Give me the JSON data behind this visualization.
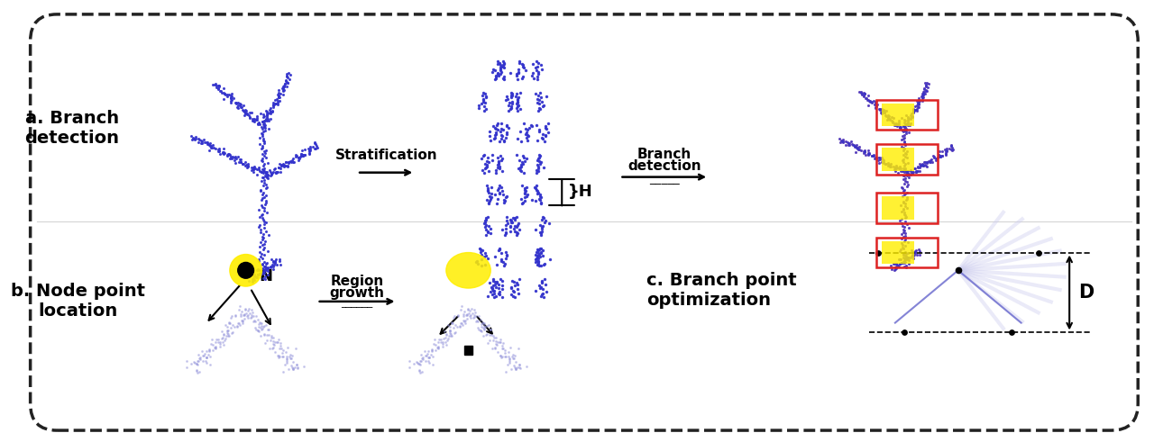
{
  "fig_width": 12.8,
  "fig_height": 4.91,
  "bg_color": "#ffffff",
  "border_color": "#222222",
  "label_a": "a. Branch\ndetection",
  "label_b": "b. Node point\nlocation",
  "label_c": "c. Branch point\noptimization",
  "arrow1_label": "Stratification",
  "arrow2_label": "Branch\ndetection",
  "arrow3_label": "Region\ngrowth",
  "H_label": "}H",
  "N_label": "N",
  "D_label": "D",
  "blue_color": "#3333cc",
  "purple_color": "#7744aa",
  "yellow_color": "#ffee00",
  "red_box_color": "#dd2222",
  "black": "#000000",
  "light_purple": "#ddbbff"
}
